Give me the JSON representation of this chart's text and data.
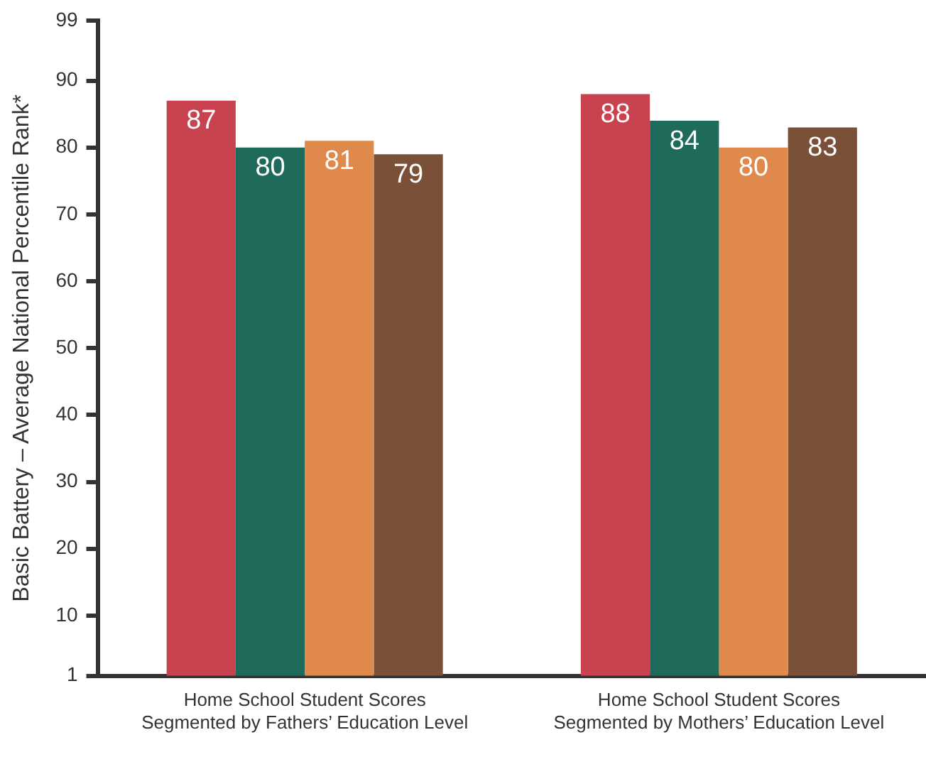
{
  "chart_data": {
    "type": "bar",
    "ylabel": "Basic Battery – Average National Percentile Rank*",
    "categories": [
      "Home School Student Scores\nSegmented by Fathers’ Education Level",
      "Home School Student Scores\nSegmented by Mothers’ Education Level"
    ],
    "series": [
      {
        "color": "#c8434f",
        "values": [
          87,
          88
        ]
      },
      {
        "color": "#1f6b5b",
        "values": [
          80,
          84
        ]
      },
      {
        "color": "#df8a4c",
        "values": [
          81,
          80
        ]
      },
      {
        "color": "#7b5038",
        "values": [
          79,
          83
        ]
      }
    ],
    "ylim": [
      1,
      99
    ],
    "yticks": [
      1,
      10,
      20,
      30,
      40,
      50,
      60,
      70,
      80,
      90,
      99
    ],
    "data_labels": true
  }
}
